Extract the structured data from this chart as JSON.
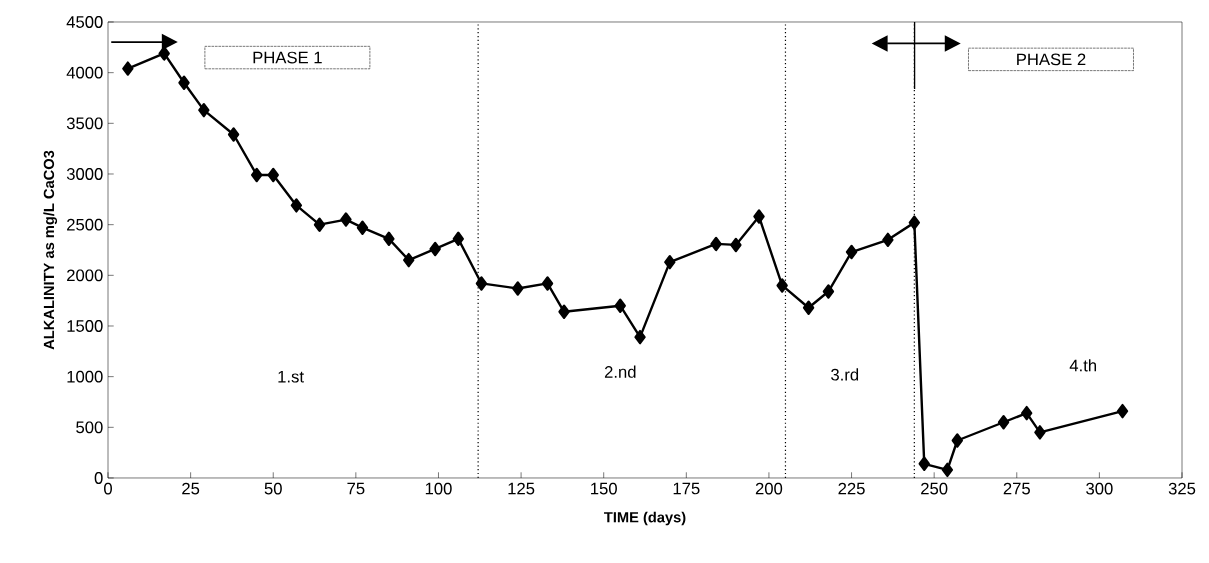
{
  "chart_data": {
    "type": "line",
    "xlabel": "TIME (days)",
    "ylabel": "ALKALINITY as mg/L CaCO3",
    "x": [
      6,
      17,
      23,
      29,
      38,
      45,
      50,
      57,
      64,
      72,
      77,
      85,
      91,
      99,
      106,
      113,
      124,
      133,
      138,
      155,
      161,
      170,
      184,
      190,
      197,
      204,
      212,
      218,
      225,
      236,
      244,
      247,
      254,
      257,
      271,
      278,
      282,
      307
    ],
    "series": [
      {
        "color": "#000000",
        "values": [
          4040,
          4190,
          3900,
          3630,
          3390,
          2990,
          2990,
          2690,
          2500,
          2550,
          2470,
          2360,
          2150,
          2260,
          2360,
          1920,
          1870,
          1920,
          1640,
          1700,
          1390,
          2130,
          2310,
          2300,
          2580,
          1900,
          1680,
          1840,
          2230,
          2350,
          2520,
          140,
          80,
          370,
          550,
          640,
          450,
          660
        ]
      }
    ],
    "xlim": [
      0,
      325
    ],
    "xticks": [
      0,
      25,
      50,
      75,
      100,
      125,
      150,
      175,
      200,
      225,
      250,
      275,
      300,
      325
    ],
    "ylim": [
      0,
      4500
    ],
    "yticks": [
      0,
      500,
      1000,
      1500,
      2000,
      2500,
      3000,
      3500,
      4000,
      4500
    ],
    "marker": "diamond",
    "line_style": "solid",
    "grid": false,
    "ref_lines": [
      {
        "axis": "x",
        "value": 112,
        "line_style": "dotted"
      },
      {
        "axis": "x",
        "value": 205,
        "line_style": "dotted"
      },
      {
        "axis": "x",
        "value": 244,
        "line_style": "dotted"
      }
    ],
    "annotations": [
      "PHASE 1",
      "PHASE 2",
      "1.st",
      "2.nd",
      "3.rd",
      "4.th"
    ]
  }
}
